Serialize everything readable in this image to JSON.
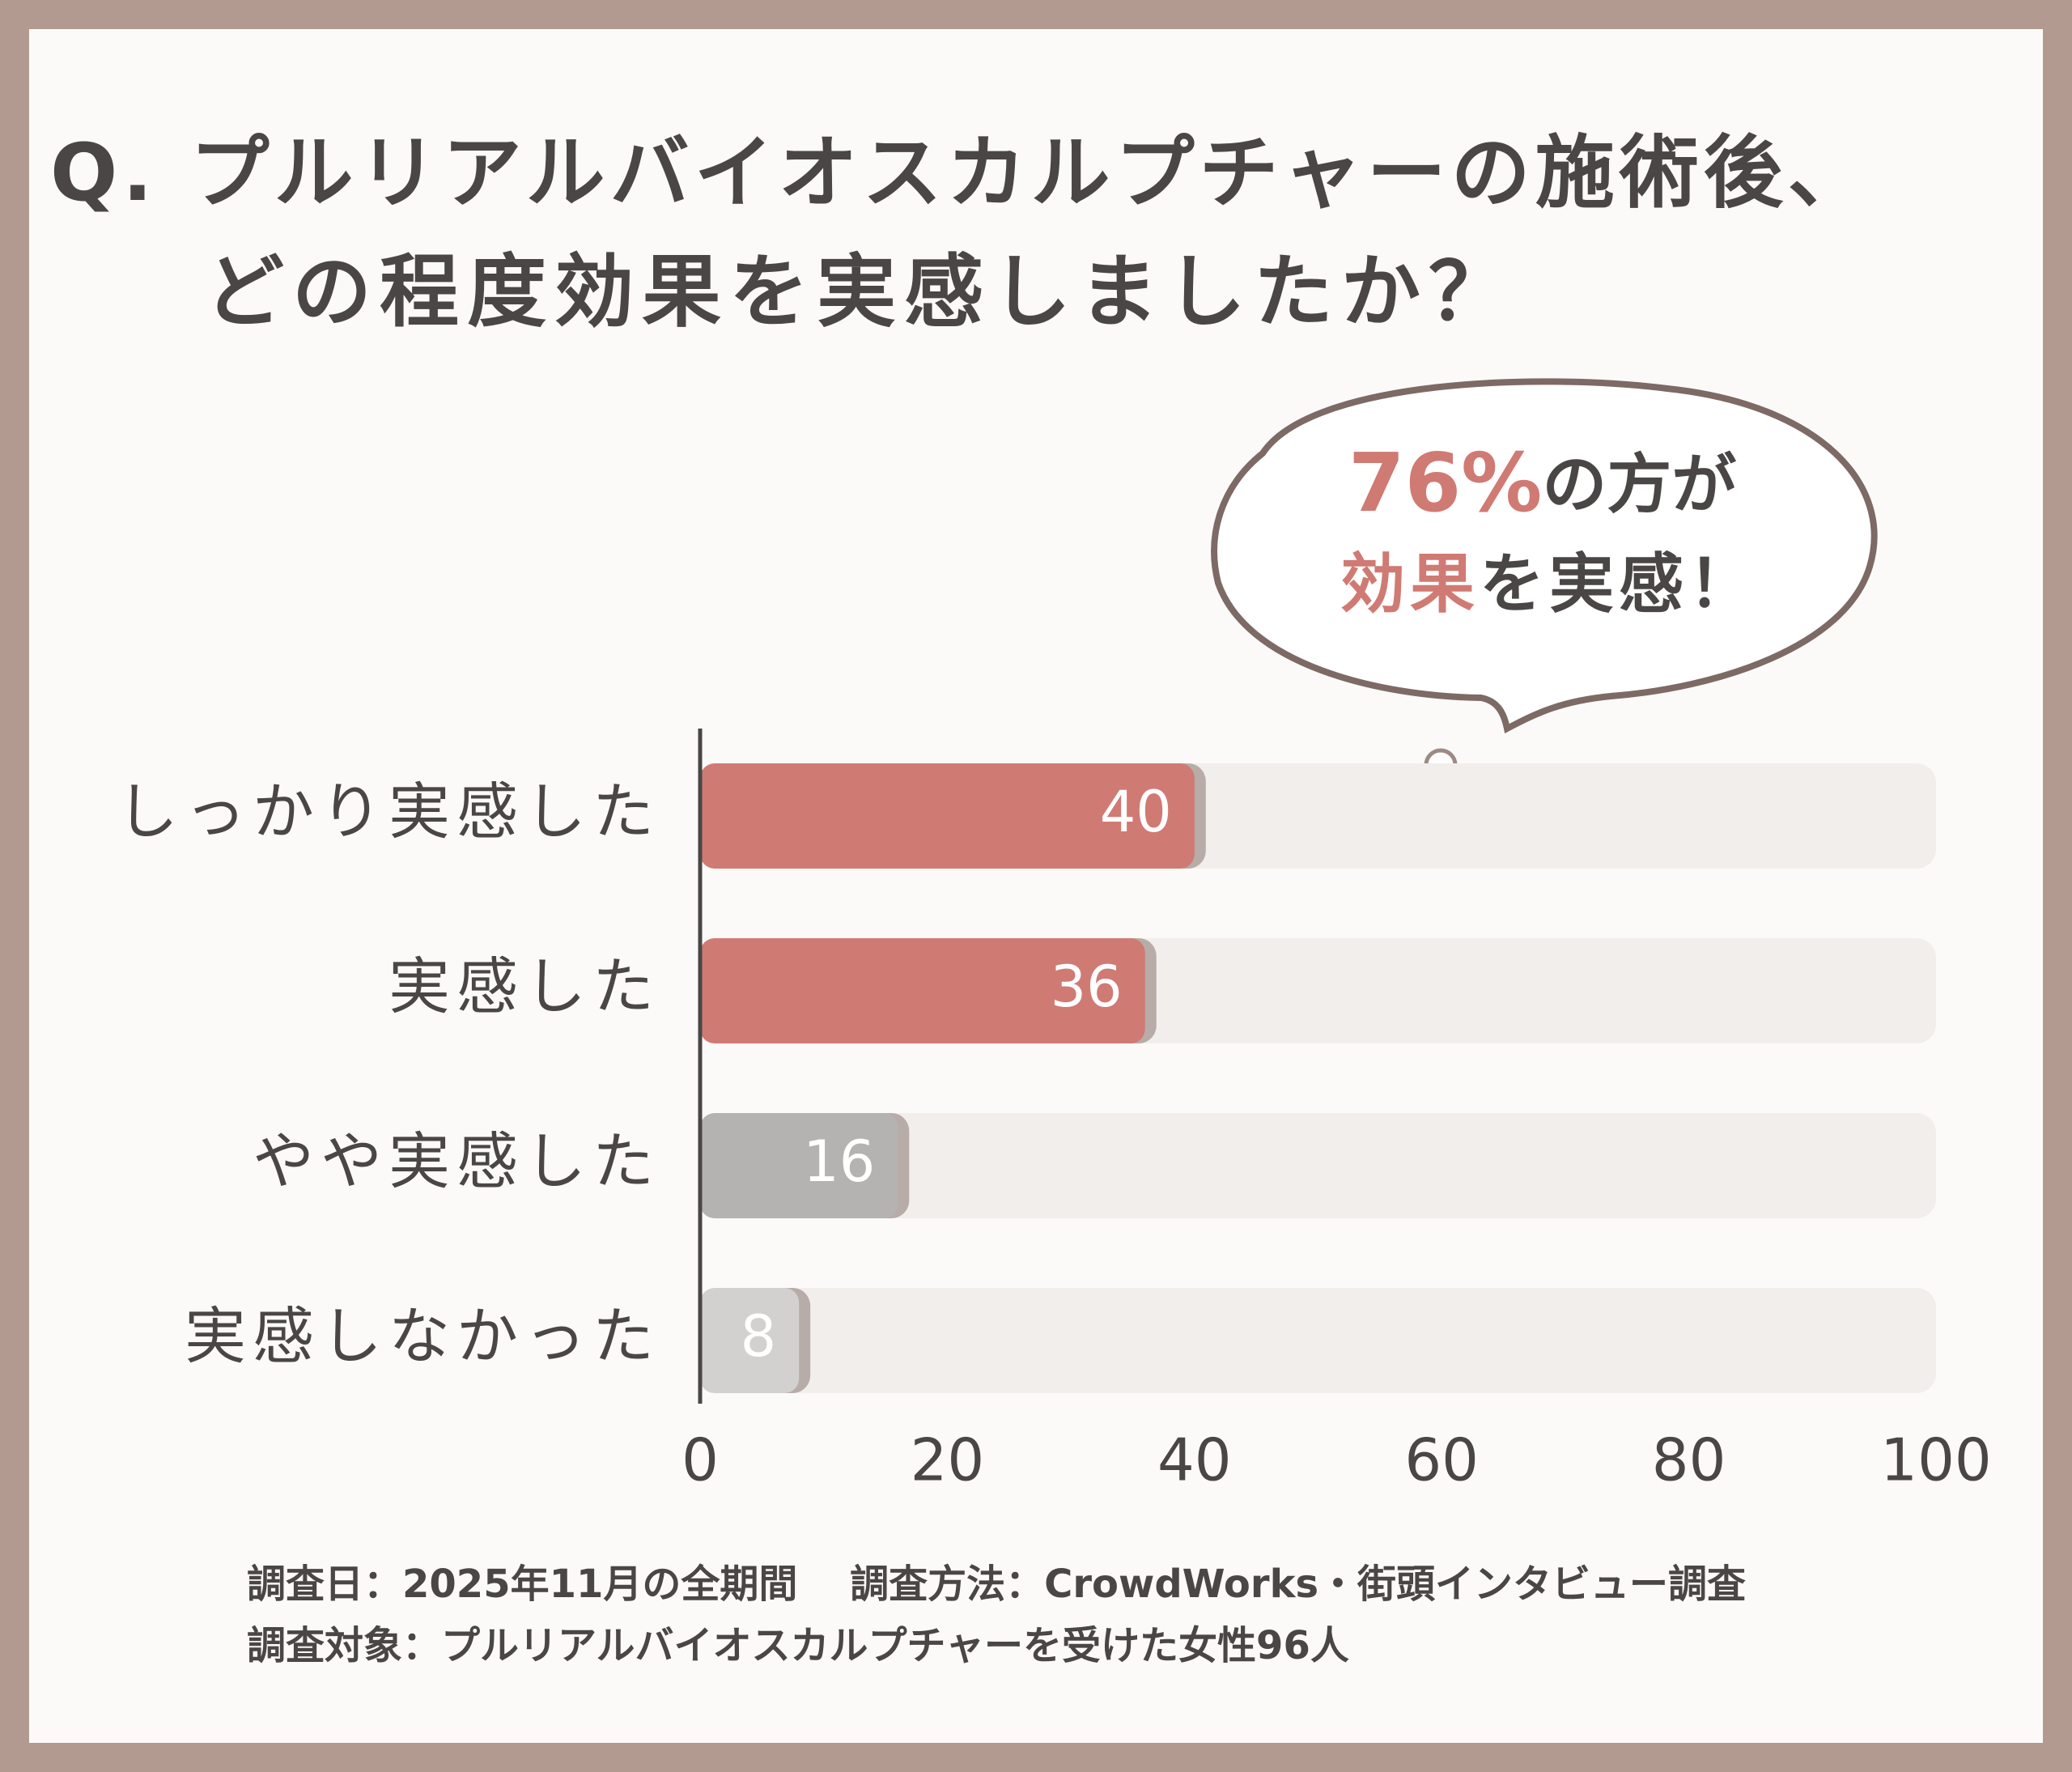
{
  "chart_data": {
    "type": "bar",
    "orientation": "horizontal",
    "title": [
      "Q. プルリアルバイオスカルプチャーの施術後、",
      "どの程度効果を実感しましたか？"
    ],
    "categories": [
      "しっかり実感した",
      "実感した",
      "やや実感した",
      "実感しなかった"
    ],
    "values": [
      40,
      36,
      16,
      8
    ],
    "colors": [
      "#d07a74",
      "#d07a74",
      "#b5b3b2",
      "#d3d1d0"
    ],
    "xlim": [
      0,
      100
    ],
    "xticks": [
      0,
      20,
      40,
      60,
      80,
      100
    ],
    "annotation": {
      "highlight": "76%",
      "line1": "の方が",
      "line2_highlight": "効果",
      "line2": "を実感！"
    },
    "footer": [
      "調査日：2025年11月の全期間　 調査方法：CrowdWorks・街頭インタビュー調査",
      "調査対象：プルリアルバイオスカルプチャーを受けた女性96人"
    ]
  }
}
